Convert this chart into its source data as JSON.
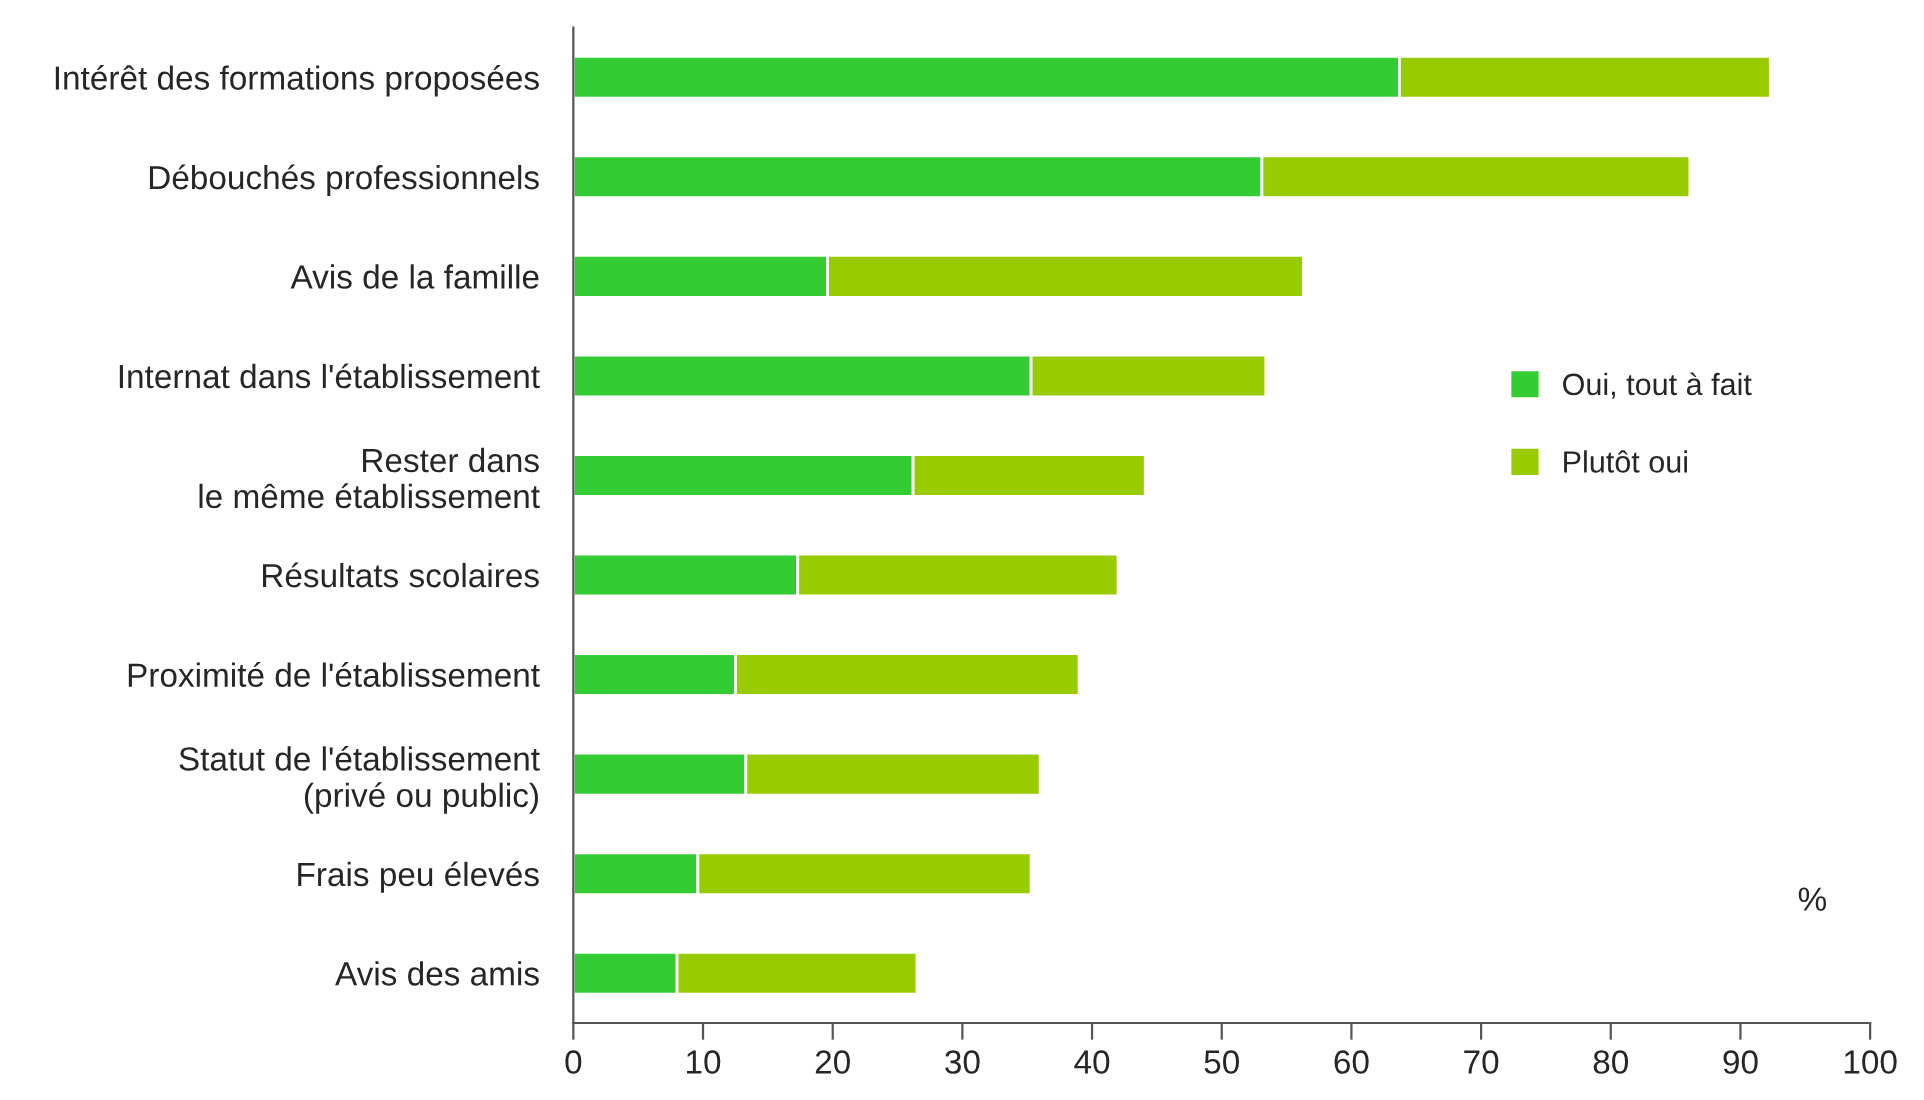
{
  "chart_data": {
    "type": "bar",
    "orientation": "horizontal",
    "stacked": true,
    "categories": [
      "Intérêt des formations proposées",
      "Débouchés professionnels",
      "Avis de la famille",
      "Internat dans l'établissement",
      "Rester dans\nle même établissement",
      "Résultats scolaires",
      "Proximité de l'établissement",
      "Statut de l'établissement\n(privé ou public)",
      "Frais peu élevés",
      "Avis des amis"
    ],
    "series": [
      {
        "name": "Oui, tout à fait",
        "color": "#33cc33",
        "values": [
          63.7,
          53.1,
          19.6,
          35.3,
          26.2,
          17.3,
          12.5,
          13.3,
          9.6,
          8.0
        ]
      },
      {
        "name": "Plutôt oui",
        "color": "#99cc00",
        "values": [
          28.6,
          33.0,
          36.7,
          18.1,
          17.9,
          24.7,
          26.5,
          22.7,
          25.7,
          18.5
        ]
      }
    ],
    "xlim": [
      0,
      100
    ],
    "xticks": [
      0,
      10,
      20,
      30,
      40,
      50,
      60,
      70,
      80,
      90,
      100
    ],
    "grid": false,
    "legend": "right",
    "annotations": [
      "%"
    ]
  }
}
